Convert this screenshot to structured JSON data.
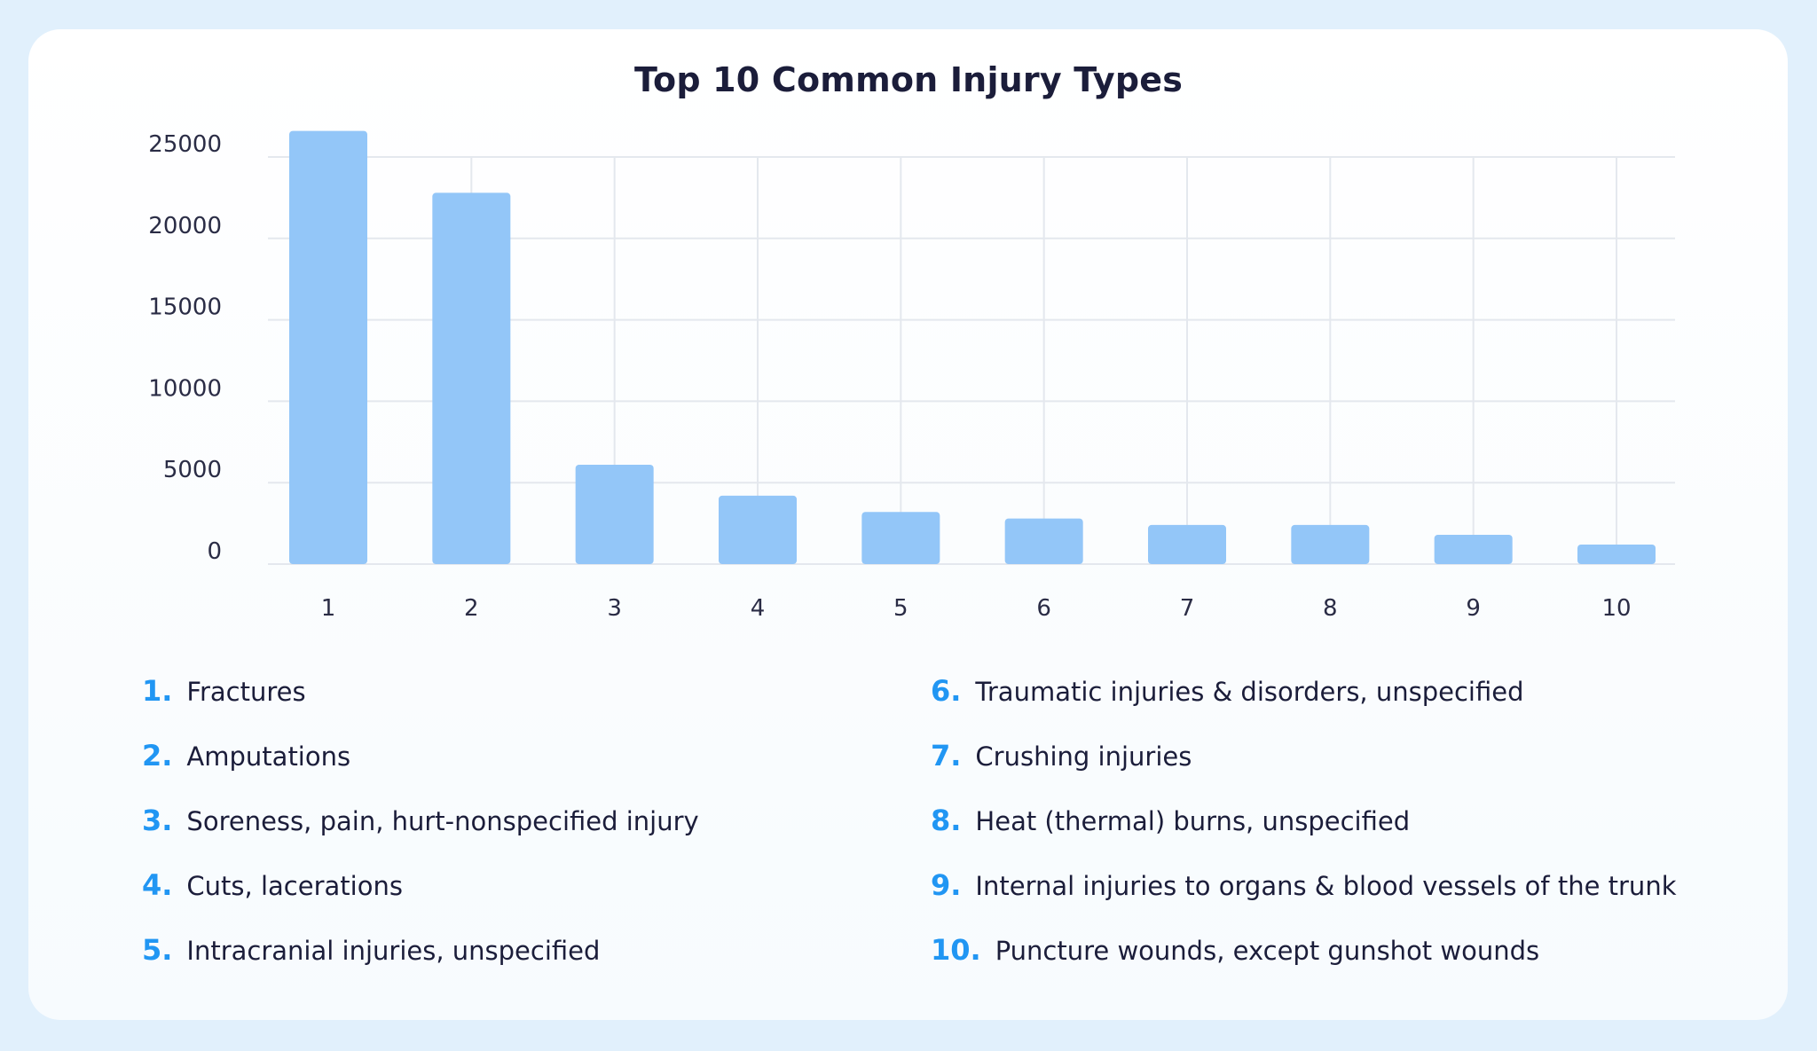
{
  "chart_data": {
    "type": "bar",
    "title": "Top 10 Common Injury Types",
    "xlabel": "",
    "ylabel": "",
    "categories": [
      "1",
      "2",
      "3",
      "4",
      "5",
      "6",
      "7",
      "8",
      "9",
      "10"
    ],
    "values": [
      26600,
      22800,
      6100,
      4200,
      3200,
      2800,
      2400,
      2400,
      1800,
      1200
    ],
    "ylim": [
      0,
      25000
    ],
    "yticks": [
      "0",
      "5000",
      "10000",
      "15000",
      "20000",
      "25000"
    ],
    "grid": true,
    "bar_color": "#93c6f8",
    "legend": [
      {
        "num": "1.",
        "label": "Fractures"
      },
      {
        "num": "2.",
        "label": "Amputations"
      },
      {
        "num": "3.",
        "label": "Soreness, pain, hurt-nonspecified injury"
      },
      {
        "num": "4.",
        "label": "Cuts, lacerations"
      },
      {
        "num": "5.",
        "label": "Intracranial injuries, unspecified"
      },
      {
        "num": "6.",
        "label": "Traumatic injuries & disorders, unspecified"
      },
      {
        "num": "7.",
        "label": "Crushing injuries"
      },
      {
        "num": "8.",
        "label": "Heat (thermal) burns, unspecified"
      },
      {
        "num": "9.",
        "label": "Internal injuries to organs & blood vessels of the trunk"
      },
      {
        "num": "10.",
        "label": "Puncture wounds, except gunshot wounds"
      }
    ]
  },
  "colors": {
    "background": "#e1f0fc",
    "accent": "#2196f3",
    "text": "#1b1d3a"
  }
}
